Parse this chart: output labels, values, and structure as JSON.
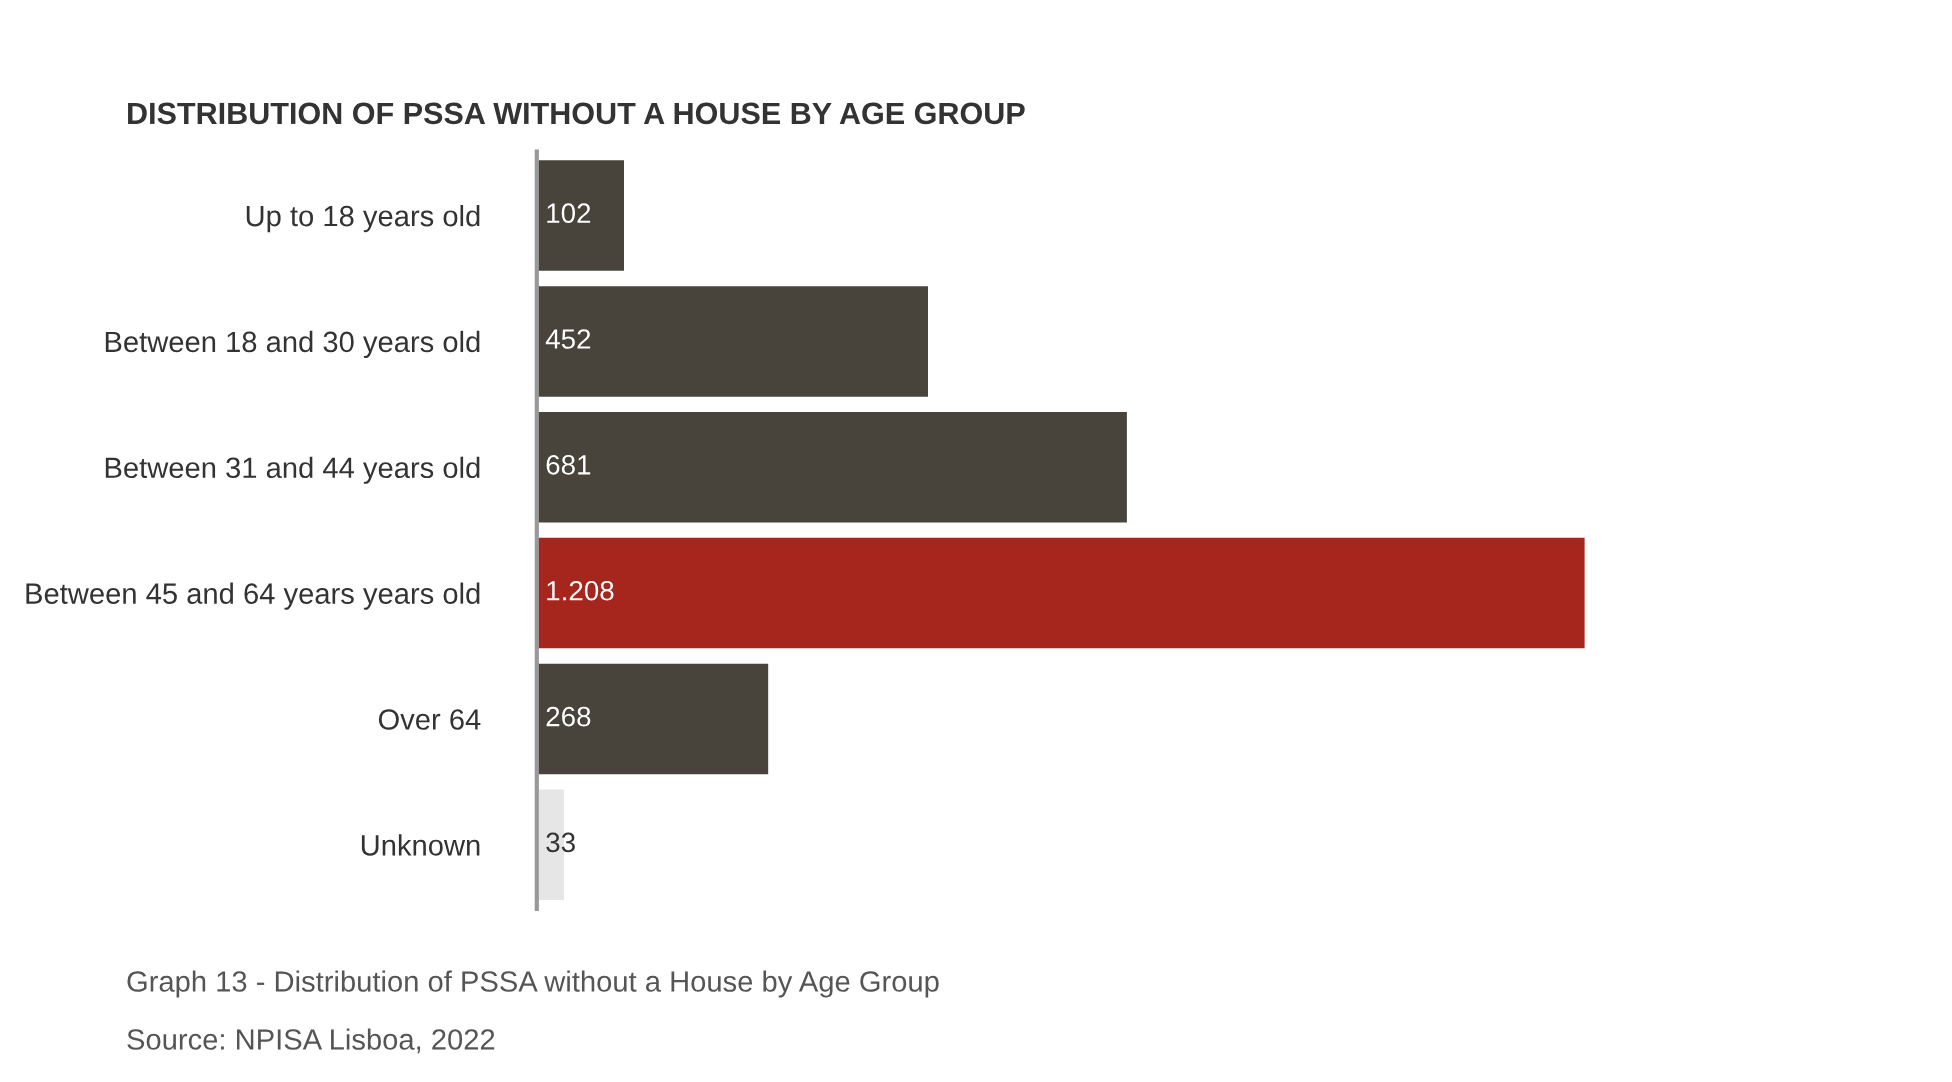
{
  "chart_data": {
    "type": "bar",
    "orientation": "horizontal",
    "title": "DISTRIBUTION OF PSSA WITHOUT A HOUSE BY AGE GROUP",
    "categories": [
      "Up to 18 years old",
      "Between 18 and 30 years old",
      "Between 31 and 44 years old",
      "Between 45 and 64 years years old",
      "Over 64",
      "Unknown"
    ],
    "values": [
      102,
      452,
      681,
      1208,
      268,
      33
    ],
    "value_labels": [
      "102",
      "452",
      "681",
      "1.208",
      "268",
      "33"
    ],
    "colors": [
      "#48433b",
      "#48433b",
      "#48433b",
      "#a6261e",
      "#48433b",
      "#e6e6e6"
    ],
    "grid": false,
    "legend": false,
    "annotations": [
      "Graph 13 - Distribution of PSSA without a House by Age Group",
      "Source: NPISA Lisboa, 2022"
    ]
  }
}
